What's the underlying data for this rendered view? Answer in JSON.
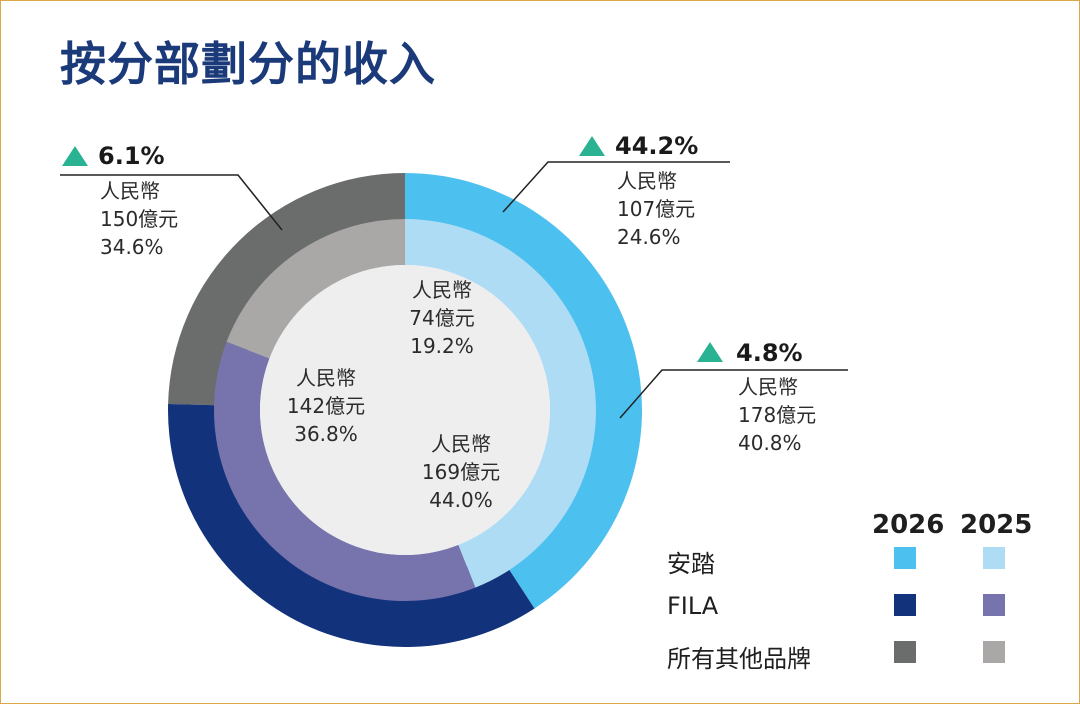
{
  "title": "按分部劃分的收入",
  "colors": {
    "anta_2026": "#4cc0ee",
    "anta_2025": "#aedcf4",
    "fila_2026": "#13327c",
    "fila_2025": "#7774ad",
    "other_2026": "#6b6d6c",
    "other_2025": "#a9a8a7",
    "center": "#eeeeee",
    "growth_triangle": "#2ab393"
  },
  "legend": {
    "year_2026": "2026",
    "year_2025": "2025",
    "items": [
      "安踏",
      "FILA",
      "所有其他品牌"
    ]
  },
  "labels": {
    "outer_fila": {
      "growth": "6.1%",
      "line1": "人民幣",
      "line2": "150億元",
      "line3": "34.6%"
    },
    "outer_other": {
      "growth": "44.2%",
      "line1": "人民幣",
      "line2": "107億元",
      "line3": "24.6%"
    },
    "outer_anta": {
      "growth": "4.8%",
      "line1": "人民幣",
      "line2": "178億元",
      "line3": "40.8%"
    },
    "inner_other": {
      "line1": "人民幣",
      "line2": "74億元",
      "line3": "19.2%"
    },
    "inner_fila": {
      "line1": "人民幣",
      "line2": "142億元",
      "line3": "36.8%"
    },
    "inner_anta": {
      "line1": "人民幣",
      "line2": "169億元",
      "line3": "44.0%"
    }
  },
  "chart_data": {
    "type": "pie",
    "title": "按分部劃分的收入",
    "categories": [
      "安踏",
      "FILA",
      "所有其他品牌"
    ],
    "series": [
      {
        "name": "2026",
        "values": [
          178,
          150,
          107
        ],
        "percent": [
          40.8,
          34.6,
          24.6
        ],
        "growth_percent": [
          4.8,
          6.1,
          44.2
        ]
      },
      {
        "name": "2025",
        "values": [
          169,
          142,
          74
        ],
        "percent": [
          44.0,
          36.8,
          19.2
        ]
      }
    ],
    "unit": "億元",
    "currency": "人民幣",
    "legend_position": "bottom-right"
  }
}
